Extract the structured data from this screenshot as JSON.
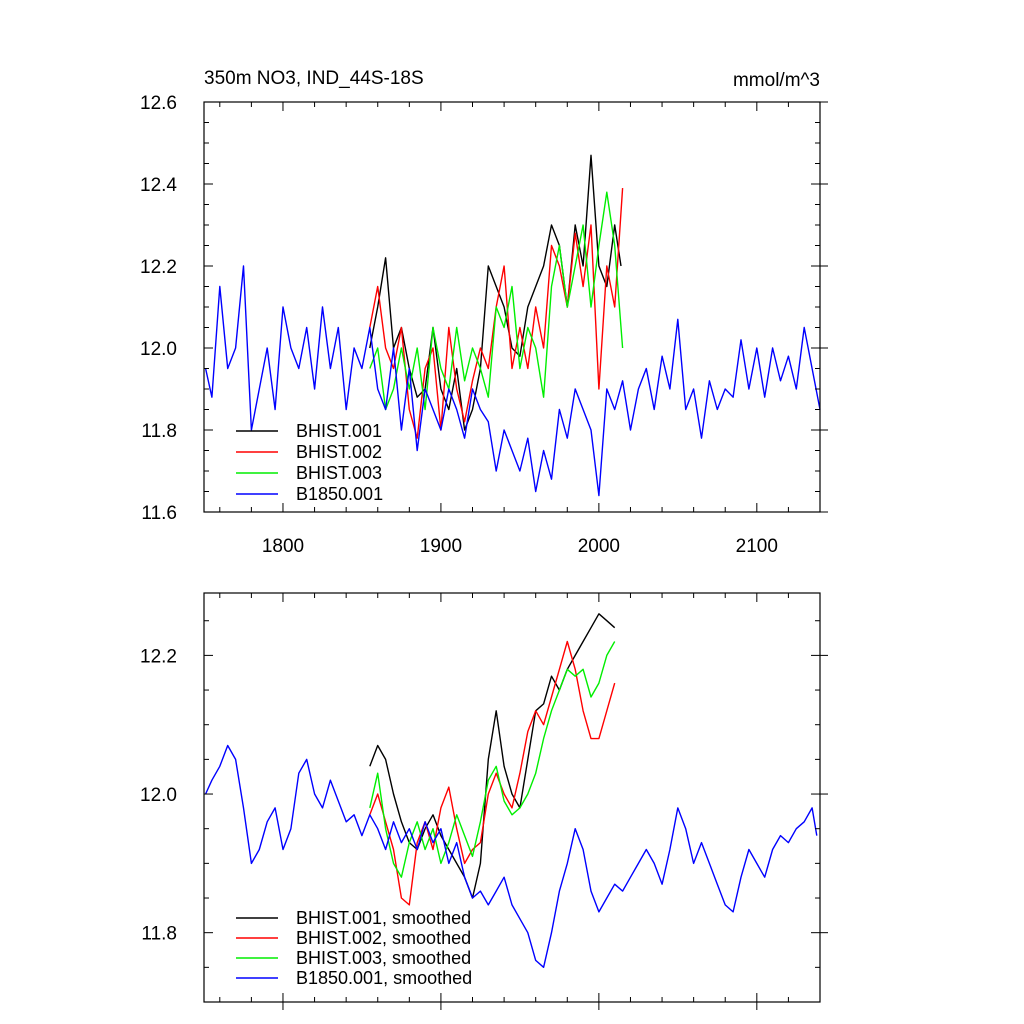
{
  "figure": {
    "title_left": "350m NO3, IND_44S-18S",
    "title_right": "mmol/m^3"
  },
  "chart_data": [
    {
      "type": "line",
      "title": "350m NO3, IND_44S-18S",
      "units": "mmol/m^3",
      "xlim": [
        1750,
        2140
      ],
      "ylim": [
        11.6,
        12.6
      ],
      "x_ticks": [
        1800,
        1900,
        2000,
        2100
      ],
      "x_tick_labels": [
        "1800",
        "1900",
        "2000",
        "2100"
      ],
      "y_ticks": [
        11.6,
        11.8,
        12.0,
        12.2,
        12.4,
        12.6
      ],
      "y_tick_labels": [
        "11.6",
        "11.8",
        "12.0",
        "12.2",
        "12.4",
        "12.6"
      ],
      "grid": false,
      "legend_position": "bottom-left",
      "series": [
        {
          "name": "BHIST.001",
          "color": "#000000",
          "x": [
            1855,
            1860,
            1865,
            1870,
            1875,
            1880,
            1885,
            1890,
            1895,
            1900,
            1905,
            1910,
            1915,
            1920,
            1925,
            1930,
            1935,
            1940,
            1945,
            1950,
            1955,
            1960,
            1965,
            1970,
            1975,
            1980,
            1985,
            1990,
            1995,
            2000,
            2005,
            2010,
            2014
          ],
          "values": [
            12.0,
            12.1,
            12.22,
            12.0,
            12.05,
            11.95,
            11.88,
            11.9,
            12.05,
            11.9,
            11.85,
            11.95,
            11.8,
            11.85,
            11.95,
            12.2,
            12.15,
            12.1,
            12.0,
            11.98,
            12.1,
            12.15,
            12.2,
            12.3,
            12.25,
            12.1,
            12.3,
            12.2,
            12.47,
            12.2,
            12.15,
            12.3,
            12.2
          ]
        },
        {
          "name": "BHIST.002",
          "color": "#ff0000",
          "x": [
            1855,
            1860,
            1865,
            1870,
            1875,
            1880,
            1885,
            1890,
            1895,
            1900,
            1905,
            1910,
            1915,
            1920,
            1925,
            1930,
            1935,
            1940,
            1945,
            1950,
            1955,
            1960,
            1965,
            1970,
            1975,
            1980,
            1985,
            1990,
            1995,
            2000,
            2005,
            2010,
            2015
          ],
          "values": [
            12.05,
            12.15,
            12.0,
            11.95,
            12.05,
            11.85,
            11.78,
            11.95,
            12.0,
            11.8,
            12.05,
            11.9,
            11.82,
            11.92,
            12.0,
            11.95,
            12.1,
            12.2,
            11.95,
            12.05,
            11.95,
            12.1,
            12.0,
            12.25,
            12.2,
            12.1,
            12.28,
            12.15,
            12.3,
            11.9,
            12.2,
            12.1,
            12.39
          ]
        },
        {
          "name": "BHIST.003",
          "color": "#00ee00",
          "x": [
            1855,
            1860,
            1865,
            1870,
            1875,
            1880,
            1885,
            1890,
            1895,
            1900,
            1905,
            1910,
            1915,
            1920,
            1925,
            1930,
            1935,
            1940,
            1945,
            1950,
            1955,
            1960,
            1965,
            1970,
            1975,
            1980,
            1985,
            1990,
            1995,
            2000,
            2005,
            2010,
            2015
          ],
          "values": [
            11.95,
            12.0,
            11.85,
            11.9,
            12.0,
            11.9,
            12.0,
            11.85,
            12.05,
            11.95,
            11.9,
            12.05,
            11.92,
            12.0,
            11.95,
            11.88,
            12.1,
            12.05,
            12.15,
            11.95,
            12.05,
            12.0,
            11.88,
            12.15,
            12.25,
            12.1,
            12.2,
            12.3,
            12.1,
            12.25,
            12.38,
            12.25,
            12.0
          ]
        },
        {
          "name": "B1850.001",
          "color": "#0000ff",
          "x": [
            1751,
            1755,
            1760,
            1765,
            1770,
            1775,
            1780,
            1785,
            1790,
            1795,
            1800,
            1805,
            1810,
            1815,
            1820,
            1825,
            1830,
            1835,
            1840,
            1845,
            1850,
            1855,
            1860,
            1865,
            1870,
            1875,
            1880,
            1885,
            1890,
            1895,
            1900,
            1905,
            1910,
            1915,
            1920,
            1925,
            1930,
            1935,
            1940,
            1945,
            1950,
            1955,
            1960,
            1965,
            1970,
            1975,
            1980,
            1985,
            1990,
            1995,
            2000,
            2005,
            2010,
            2015,
            2020,
            2025,
            2030,
            2035,
            2040,
            2045,
            2050,
            2055,
            2060,
            2065,
            2070,
            2075,
            2080,
            2085,
            2090,
            2095,
            2100,
            2105,
            2110,
            2115,
            2120,
            2125,
            2130,
            2135,
            2140
          ],
          "values": [
            11.95,
            11.88,
            12.15,
            11.95,
            12.0,
            12.2,
            11.8,
            11.9,
            12.0,
            11.85,
            12.1,
            12.0,
            11.95,
            12.05,
            11.9,
            12.1,
            11.95,
            12.05,
            11.85,
            12.0,
            11.95,
            12.05,
            11.9,
            11.85,
            12.0,
            11.8,
            11.95,
            11.75,
            11.9,
            11.85,
            11.8,
            11.9,
            11.85,
            11.78,
            11.9,
            11.85,
            11.82,
            11.7,
            11.8,
            11.75,
            11.7,
            11.78,
            11.65,
            11.75,
            11.68,
            11.85,
            11.78,
            11.9,
            11.85,
            11.8,
            11.64,
            11.9,
            11.85,
            11.92,
            11.8,
            11.9,
            11.95,
            11.85,
            11.98,
            11.9,
            12.07,
            11.85,
            11.9,
            11.78,
            11.92,
            11.85,
            11.9,
            11.88,
            12.02,
            11.9,
            12.0,
            11.88,
            12.0,
            11.92,
            11.98,
            11.9,
            12.05,
            11.95,
            11.85
          ]
        }
      ]
    },
    {
      "type": "line",
      "xlim": [
        1750,
        2140
      ],
      "ylim": [
        11.7,
        12.29
      ],
      "x_ticks": [
        1800,
        1900,
        2000,
        2100
      ],
      "y_ticks": [
        11.8,
        12.0,
        12.2
      ],
      "y_tick_labels": [
        "11.8",
        "12.0",
        "12.2"
      ],
      "grid": false,
      "legend_position": "bottom-left",
      "series": [
        {
          "name": "BHIST.001, smoothed",
          "color": "#000000",
          "x": [
            1855,
            1860,
            1865,
            1870,
            1875,
            1880,
            1885,
            1890,
            1895,
            1900,
            1905,
            1910,
            1915,
            1920,
            1925,
            1930,
            1935,
            1940,
            1945,
            1950,
            1955,
            1960,
            1965,
            1970,
            1975,
            1980,
            1985,
            1990,
            1995,
            2000,
            2005,
            2010
          ],
          "values": [
            12.04,
            12.07,
            12.05,
            12.0,
            11.96,
            11.93,
            11.92,
            11.95,
            11.97,
            11.94,
            11.92,
            11.9,
            11.88,
            11.85,
            11.9,
            12.05,
            12.12,
            12.04,
            12.0,
            11.98,
            12.05,
            12.12,
            12.13,
            12.17,
            12.15,
            12.18,
            12.2,
            12.22,
            12.24,
            12.26,
            12.25,
            12.24
          ]
        },
        {
          "name": "BHIST.002, smoothed",
          "color": "#ff0000",
          "x": [
            1855,
            1860,
            1865,
            1870,
            1875,
            1880,
            1885,
            1890,
            1895,
            1900,
            1905,
            1910,
            1915,
            1920,
            1925,
            1930,
            1935,
            1940,
            1945,
            1950,
            1955,
            1960,
            1965,
            1970,
            1975,
            1980,
            1985,
            1990,
            1995,
            2000,
            2005,
            2010
          ],
          "values": [
            11.97,
            12.0,
            11.96,
            11.92,
            11.85,
            11.84,
            11.93,
            11.96,
            11.92,
            11.98,
            12.01,
            11.95,
            11.9,
            11.92,
            11.93,
            12.0,
            12.03,
            12.0,
            11.98,
            12.03,
            12.09,
            12.12,
            12.1,
            12.14,
            12.18,
            12.22,
            12.18,
            12.12,
            12.08,
            12.08,
            12.12,
            12.16
          ]
        },
        {
          "name": "BHIST.003, smoothed",
          "color": "#00ee00",
          "x": [
            1855,
            1860,
            1865,
            1870,
            1875,
            1880,
            1885,
            1890,
            1895,
            1900,
            1905,
            1910,
            1915,
            1920,
            1925,
            1930,
            1935,
            1940,
            1945,
            1950,
            1955,
            1960,
            1965,
            1970,
            1975,
            1980,
            1985,
            1990,
            1995,
            2000,
            2005,
            2010
          ],
          "values": [
            11.98,
            12.03,
            11.95,
            11.9,
            11.88,
            11.93,
            11.96,
            11.92,
            11.95,
            11.9,
            11.93,
            11.97,
            11.94,
            11.91,
            11.96,
            12.02,
            12.04,
            11.99,
            11.97,
            11.98,
            12.0,
            12.03,
            12.08,
            12.12,
            12.15,
            12.18,
            12.17,
            12.18,
            12.14,
            12.16,
            12.2,
            12.22
          ]
        },
        {
          "name": "B1850.001, smoothed",
          "color": "#0000ff",
          "x": [
            1751,
            1755,
            1760,
            1765,
            1770,
            1775,
            1780,
            1785,
            1790,
            1795,
            1800,
            1805,
            1810,
            1815,
            1820,
            1825,
            1830,
            1835,
            1840,
            1845,
            1850,
            1855,
            1860,
            1865,
            1870,
            1875,
            1880,
            1885,
            1890,
            1895,
            1900,
            1905,
            1910,
            1915,
            1920,
            1925,
            1930,
            1935,
            1940,
            1945,
            1950,
            1955,
            1960,
            1965,
            1970,
            1975,
            1980,
            1985,
            1990,
            1995,
            2000,
            2005,
            2010,
            2015,
            2020,
            2025,
            2030,
            2035,
            2040,
            2045,
            2050,
            2055,
            2060,
            2065,
            2070,
            2075,
            2080,
            2085,
            2090,
            2095,
            2100,
            2105,
            2110,
            2115,
            2120,
            2125,
            2130,
            2135,
            2138
          ],
          "values": [
            12.0,
            12.02,
            12.04,
            12.07,
            12.05,
            11.98,
            11.9,
            11.92,
            11.96,
            11.98,
            11.92,
            11.95,
            12.03,
            12.05,
            12.0,
            11.98,
            12.02,
            11.99,
            11.96,
            11.97,
            11.94,
            11.97,
            11.95,
            11.92,
            11.96,
            11.93,
            11.95,
            11.92,
            11.96,
            11.93,
            11.95,
            11.9,
            11.93,
            11.88,
            11.85,
            11.86,
            11.84,
            11.86,
            11.88,
            11.84,
            11.82,
            11.8,
            11.76,
            11.75,
            11.8,
            11.86,
            11.9,
            11.95,
            11.92,
            11.86,
            11.83,
            11.85,
            11.87,
            11.86,
            11.88,
            11.9,
            11.92,
            11.9,
            11.87,
            11.92,
            11.98,
            11.95,
            11.9,
            11.93,
            11.9,
            11.87,
            11.84,
            11.83,
            11.88,
            11.92,
            11.9,
            11.88,
            11.92,
            11.94,
            11.93,
            11.95,
            11.96,
            11.98,
            11.94
          ]
        }
      ]
    }
  ]
}
